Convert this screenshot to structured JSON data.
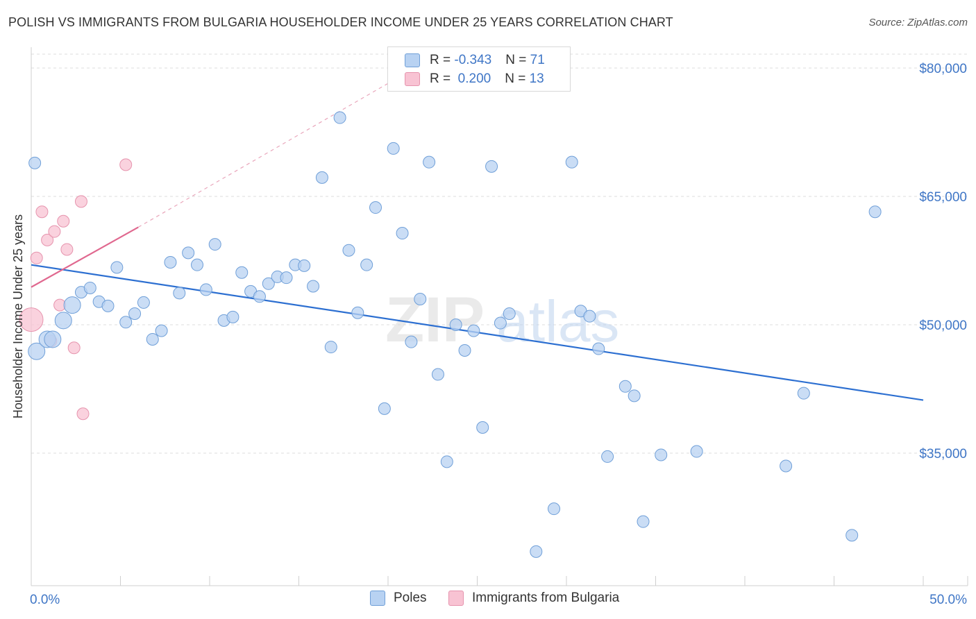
{
  "header": {
    "title": "POLISH VS IMMIGRANTS FROM BULGARIA HOUSEHOLDER INCOME UNDER 25 YEARS CORRELATION CHART",
    "source": "Source: ZipAtlas.com"
  },
  "watermark": {
    "zip": "ZIP",
    "atlas": "atlas"
  },
  "legend": {
    "rows": [
      {
        "r_label": "R = ",
        "r_value": "-0.343",
        "n_label": "N = ",
        "n_value": "71"
      },
      {
        "r_label": "R = ",
        "r_value": " 0.200",
        "n_label": "N = ",
        "n_value": "13"
      }
    ]
  },
  "bottom_legend": {
    "series1": "Poles",
    "series2": "Immigrants from Bulgaria"
  },
  "colors": {
    "poles_fill": "#b8d2f2",
    "poles_stroke": "#6f9fd8",
    "poles_line": "#2c6fd1",
    "bulg_fill": "#f8c3d3",
    "bulg_stroke": "#e693ad",
    "bulg_line": "#e0688f",
    "grid": "#dddddd",
    "tick_text": "#3f76c6"
  },
  "chart_data": {
    "type": "scatter",
    "title": "POLISH VS IMMIGRANTS FROM BULGARIA HOUSEHOLDER INCOME UNDER 25 YEARS CORRELATION CHART",
    "xlabel": "",
    "ylabel": "Householder Income Under 25 years",
    "xlim": [
      0,
      50
    ],
    "ylim": [
      20000,
      84000
    ],
    "x_tick_labels": [
      {
        "value": 0,
        "label": "0.0%"
      },
      {
        "value": 50,
        "label": "50.0%"
      }
    ],
    "y_tick_labels": [
      {
        "value": 35000,
        "label": "$35,000"
      },
      {
        "value": 50000,
        "label": "$50,000"
      },
      {
        "value": 65000,
        "label": "$65,000"
      },
      {
        "value": 80000,
        "label": "$80,000"
      }
    ],
    "gridlines_y": [
      35000,
      50000,
      65000,
      80000
    ],
    "series": [
      {
        "name": "Poles",
        "r": -0.343,
        "n": 71,
        "trend": {
          "x": [
            0,
            50
          ],
          "y": [
            57000,
            41200
          ],
          "style": "solid"
        },
        "points": [
          {
            "x": 0.3,
            "y": 46900,
            "s": "l"
          },
          {
            "x": 0.9,
            "y": 48300,
            "s": "l"
          },
          {
            "x": 1.2,
            "y": 48300,
            "s": "l"
          },
          {
            "x": 1.8,
            "y": 50500,
            "s": "l"
          },
          {
            "x": 2.3,
            "y": 52300,
            "s": "l"
          },
          {
            "x": 2.8,
            "y": 53800,
            "s": "m"
          },
          {
            "x": 3.3,
            "y": 54300,
            "s": "m"
          },
          {
            "x": 3.8,
            "y": 52700,
            "s": "m"
          },
          {
            "x": 4.3,
            "y": 52200,
            "s": "m"
          },
          {
            "x": 4.8,
            "y": 56700,
            "s": "m"
          },
          {
            "x": 5.3,
            "y": 50300,
            "s": "m"
          },
          {
            "x": 5.8,
            "y": 51300,
            "s": "m"
          },
          {
            "x": 6.3,
            "y": 52600,
            "s": "m"
          },
          {
            "x": 6.8,
            "y": 48300,
            "s": "m"
          },
          {
            "x": 7.3,
            "y": 49300,
            "s": "m"
          },
          {
            "x": 7.8,
            "y": 57300,
            "s": "m"
          },
          {
            "x": 8.3,
            "y": 53700,
            "s": "m"
          },
          {
            "x": 8.8,
            "y": 58400,
            "s": "m"
          },
          {
            "x": 9.3,
            "y": 57000,
            "s": "m"
          },
          {
            "x": 9.8,
            "y": 54100,
            "s": "m"
          },
          {
            "x": 10.3,
            "y": 59400,
            "s": "m"
          },
          {
            "x": 10.8,
            "y": 50500,
            "s": "m"
          },
          {
            "x": 11.3,
            "y": 50900,
            "s": "m"
          },
          {
            "x": 11.8,
            "y": 56100,
            "s": "m"
          },
          {
            "x": 12.3,
            "y": 53900,
            "s": "m"
          },
          {
            "x": 12.8,
            "y": 53300,
            "s": "m"
          },
          {
            "x": 13.3,
            "y": 54800,
            "s": "m"
          },
          {
            "x": 13.8,
            "y": 55600,
            "s": "m"
          },
          {
            "x": 14.3,
            "y": 55500,
            "s": "m"
          },
          {
            "x": 14.8,
            "y": 57000,
            "s": "m"
          },
          {
            "x": 15.3,
            "y": 56900,
            "s": "m"
          },
          {
            "x": 15.8,
            "y": 54500,
            "s": "m"
          },
          {
            "x": 16.3,
            "y": 67200,
            "s": "m"
          },
          {
            "x": 16.8,
            "y": 47400,
            "s": "m"
          },
          {
            "x": 17.3,
            "y": 74200,
            "s": "m"
          },
          {
            "x": 17.8,
            "y": 58700,
            "s": "m"
          },
          {
            "x": 18.3,
            "y": 51400,
            "s": "m"
          },
          {
            "x": 18.8,
            "y": 57000,
            "s": "m"
          },
          {
            "x": 19.3,
            "y": 63700,
            "s": "m"
          },
          {
            "x": 19.8,
            "y": 40200,
            "s": "m"
          },
          {
            "x": 20.3,
            "y": 70600,
            "s": "m"
          },
          {
            "x": 20.8,
            "y": 60700,
            "s": "m"
          },
          {
            "x": 21.3,
            "y": 48000,
            "s": "m"
          },
          {
            "x": 21.8,
            "y": 53000,
            "s": "m"
          },
          {
            "x": 22.3,
            "y": 69000,
            "s": "m"
          },
          {
            "x": 22.8,
            "y": 44200,
            "s": "m"
          },
          {
            "x": 23.3,
            "y": 34000,
            "s": "m"
          },
          {
            "x": 23.8,
            "y": 50000,
            "s": "m"
          },
          {
            "x": 24.3,
            "y": 47000,
            "s": "m"
          },
          {
            "x": 24.8,
            "y": 49300,
            "s": "m"
          },
          {
            "x": 25.3,
            "y": 38000,
            "s": "m"
          },
          {
            "x": 25.8,
            "y": 68500,
            "s": "m"
          },
          {
            "x": 26.3,
            "y": 50200,
            "s": "m"
          },
          {
            "x": 26.8,
            "y": 51300,
            "s": "m"
          },
          {
            "x": 28.3,
            "y": 23500,
            "s": "m"
          },
          {
            "x": 29.3,
            "y": 28500,
            "s": "m"
          },
          {
            "x": 30.3,
            "y": 69000,
            "s": "m"
          },
          {
            "x": 30.8,
            "y": 51600,
            "s": "m"
          },
          {
            "x": 31.3,
            "y": 51000,
            "s": "m"
          },
          {
            "x": 31.8,
            "y": 47200,
            "s": "m"
          },
          {
            "x": 32.3,
            "y": 34600,
            "s": "m"
          },
          {
            "x": 33.3,
            "y": 42800,
            "s": "m"
          },
          {
            "x": 33.8,
            "y": 41700,
            "s": "m"
          },
          {
            "x": 34.3,
            "y": 27000,
            "s": "m"
          },
          {
            "x": 35.3,
            "y": 34800,
            "s": "m"
          },
          {
            "x": 37.3,
            "y": 35200,
            "s": "m"
          },
          {
            "x": 42.3,
            "y": 33500,
            "s": "m"
          },
          {
            "x": 43.3,
            "y": 42000,
            "s": "m"
          },
          {
            "x": 46.0,
            "y": 25400,
            "s": "m"
          },
          {
            "x": 47.3,
            "y": 63200,
            "s": "m"
          },
          {
            "x": 0.2,
            "y": 68900,
            "s": "m"
          }
        ]
      },
      {
        "name": "Immigrants from Bulgaria",
        "r": 0.2,
        "n": 13,
        "trend": {
          "x": [
            0,
            6.0
          ],
          "y": [
            54400,
            61400
          ],
          "style": "solid",
          "extension": {
            "x": [
              6.0,
              21.5
            ],
            "y": [
              61400,
              80000
            ],
            "style": "dashed"
          }
        },
        "points": [
          {
            "x": 0.0,
            "y": 50600,
            "s": "xl"
          },
          {
            "x": 0.3,
            "y": 57800,
            "s": "m"
          },
          {
            "x": 0.6,
            "y": 63200,
            "s": "m"
          },
          {
            "x": 0.9,
            "y": 59900,
            "s": "m"
          },
          {
            "x": 1.1,
            "y": 48100,
            "s": "m"
          },
          {
            "x": 1.3,
            "y": 60900,
            "s": "m"
          },
          {
            "x": 1.6,
            "y": 52300,
            "s": "m"
          },
          {
            "x": 1.8,
            "y": 62100,
            "s": "m"
          },
          {
            "x": 2.0,
            "y": 58800,
            "s": "m"
          },
          {
            "x": 2.4,
            "y": 47300,
            "s": "m"
          },
          {
            "x": 2.8,
            "y": 64400,
            "s": "m"
          },
          {
            "x": 2.9,
            "y": 39600,
            "s": "m"
          },
          {
            "x": 5.3,
            "y": 68700,
            "s": "m"
          }
        ]
      }
    ]
  }
}
